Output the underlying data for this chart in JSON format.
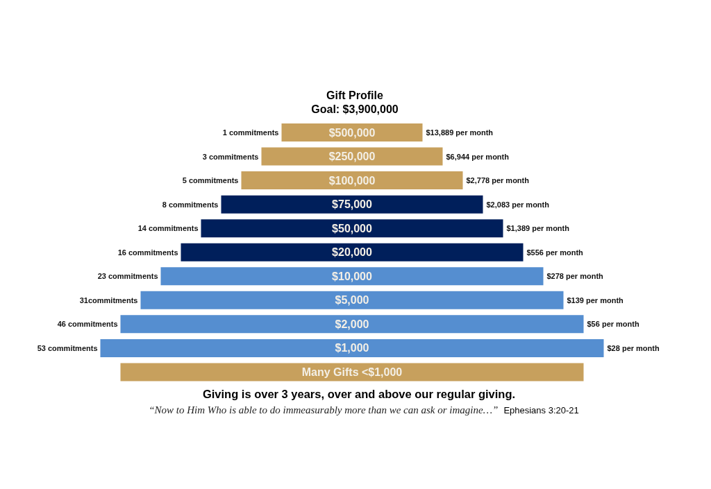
{
  "chart_data": {
    "type": "other",
    "title": "Gift Profile",
    "subtitle": "Goal: $3,900,000",
    "categories": [
      "1 commitments",
      "3 commitments",
      "5 commitments",
      "8 commitments",
      "14 commitments",
      "16 commitments",
      "23 commitments",
      "31commitments",
      "46 commitments",
      "53 commitments",
      null
    ],
    "values": [
      500000,
      250000,
      100000,
      75000,
      50000,
      20000,
      10000,
      5000,
      2000,
      1000,
      null
    ],
    "value_labels": [
      "$500,000",
      "$250,000",
      "$100,000",
      "$75,000",
      "$50,000",
      "$20,000",
      "$10,000",
      "$5,000",
      "$2,000",
      "$1,000",
      "Many Gifts <$1,000"
    ],
    "colors": [
      "#c7a05d",
      "#c7a05d",
      "#c7a05d",
      "#001f5b",
      "#001f5b",
      "#001f5b",
      "#558ed0",
      "#558ed0",
      "#558ed0",
      "#558ed0",
      "#c7a05d"
    ],
    "annotations": [
      {
        "text": "$13,889 per month",
        "y": "1 commitments"
      },
      {
        "text": "$6,944 per month",
        "y": "3 commitments"
      },
      {
        "text": "$2,778 per month",
        "y": "5 commitments"
      },
      {
        "text": "$2,083 per month",
        "y": "8 commitments"
      },
      {
        "text": "$1,389 per month",
        "y": "14 commitments"
      },
      {
        "text": "$556 per month",
        "y": "16 commitments"
      },
      {
        "text": "$278 per month",
        "y": "23 commitments"
      },
      {
        "text": "$139 per month",
        "y": "31commitments"
      },
      {
        "text": "$56 per month",
        "y": "46 commitments"
      },
      {
        "text": "$28 per month",
        "y": "53 commitments"
      },
      "Giving is over 3 years, over and above our regular giving.",
      "“Now to Him Who is able to do immeasurably more than we can ask or imagine…”",
      "Ephesians 3:20-21"
    ]
  }
}
